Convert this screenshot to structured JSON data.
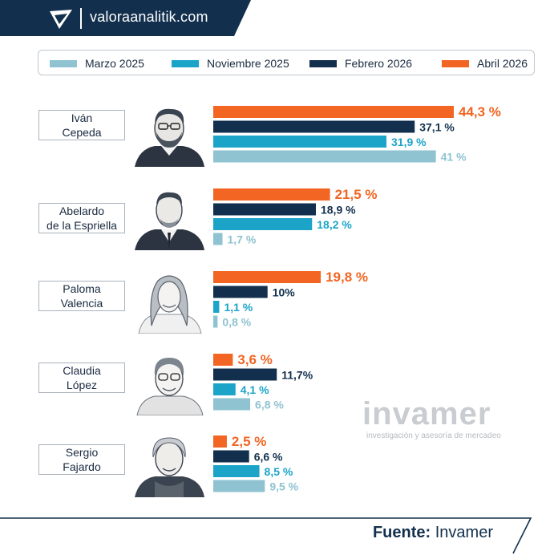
{
  "header": {
    "site": "valoraanalitik.com"
  },
  "legend": [
    {
      "label": "Marzo 2025",
      "color": "#8fc3d1"
    },
    {
      "label": "Noviembre 2025",
      "color": "#1ba4c8"
    },
    {
      "label": "Febrero 2026",
      "color": "#12304d"
    },
    {
      "label": "Abril 2026",
      "color": "#f26522"
    }
  ],
  "candidates": [
    {
      "name": "Iván\nCepeda",
      "portrait": "portrait-man-glasses-beard-icon"
    },
    {
      "name": "Abelardo\nde la Espriella",
      "portrait": "portrait-man-suit-icon"
    },
    {
      "name": "Paloma\nValencia",
      "portrait": "portrait-woman-long-hair-icon"
    },
    {
      "name": "Claudia\nLópez",
      "portrait": "portrait-woman-short-hair-icon"
    },
    {
      "name": "Sergio\nFajardo",
      "portrait": "portrait-man-gray-hair-icon"
    }
  ],
  "chart_data": {
    "type": "bar",
    "orientation": "horizontal",
    "categories": [
      "Iván Cepeda",
      "Abelardo de la Espriella",
      "Paloma Valencia",
      "Claudia López",
      "Sergio Fajardo"
    ],
    "series": [
      {
        "name": "Abril 2026",
        "color": "#f26522",
        "values": [
          44.3,
          21.5,
          19.8,
          3.6,
          2.5
        ],
        "labels": [
          "44,3 %",
          "21,5 %",
          "19,8 %",
          "3,6 %",
          "2,5 %"
        ]
      },
      {
        "name": "Febrero 2026",
        "color": "#12304d",
        "values": [
          37.1,
          18.9,
          10,
          11.7,
          6.6
        ],
        "labels": [
          "37,1 %",
          "18,9 %",
          "10%",
          "11,7%",
          "6,6 %"
        ]
      },
      {
        "name": "Noviembre 2025",
        "color": "#1ba4c8",
        "values": [
          31.9,
          18.2,
          1.1,
          4.1,
          8.5
        ],
        "labels": [
          "31,9 %",
          "18,2 %",
          "1,1 %",
          "4,1 %",
          "8,5 %"
        ]
      },
      {
        "name": "Marzo 2025",
        "color": "#8fc3d1",
        "values": [
          41,
          1.7,
          0.8,
          6.8,
          9.5
        ],
        "labels": [
          "41 %",
          "1,7 %",
          "0,8 %",
          "6,8 %",
          "9,5 %"
        ]
      }
    ],
    "xlim": [
      0,
      44.3
    ],
    "grid": false,
    "legend_position": "top"
  },
  "watermark": {
    "brand": "invamer",
    "tagline": "investigación y asesoría de mercadeo"
  },
  "footer": {
    "source_label": "Fuente:",
    "source_value": "Invamer"
  }
}
